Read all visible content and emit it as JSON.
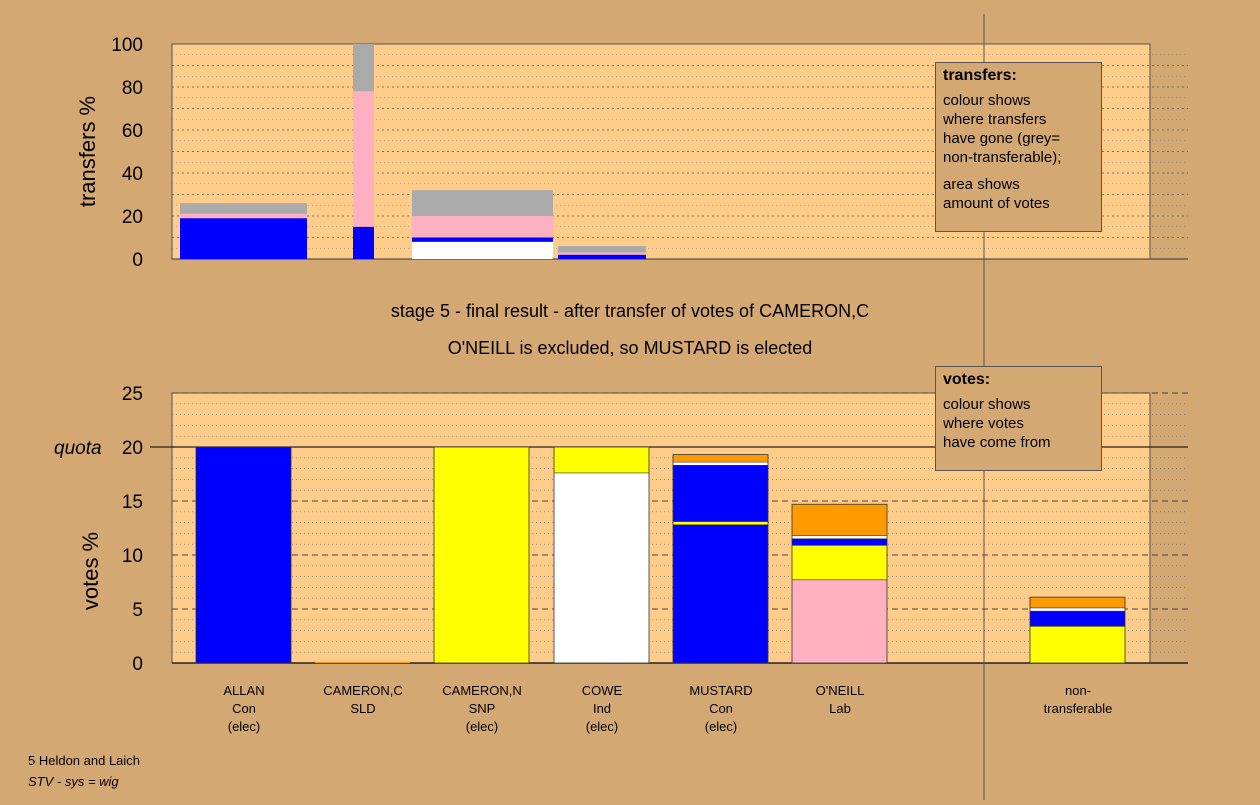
{
  "colors": {
    "background": "#d4a872",
    "plot_bg": "#ffcc8a",
    "Con": "#0000ff",
    "SNP": "#ffff00",
    "Ind": "#ffffff",
    "Lab": "#ffb0c0",
    "SLD": "#ff9900",
    "nontransferable": "#aaaaaa"
  },
  "headings": {
    "line1": "stage 5 - final result - after transfer of votes of CAMERON,C",
    "line2": "O'NEILL is excluded, so MUSTARD is elected"
  },
  "legends": {
    "transfers": {
      "title": "transfers:",
      "lines": [
        "colour shows",
        "where transfers",
        "have gone (grey=",
        "non-transferable);"
      ],
      "lines2": [
        "area shows",
        "amount of votes"
      ]
    },
    "votes": {
      "title": "votes:",
      "lines": [
        "colour shows",
        "where votes",
        "have come from"
      ]
    }
  },
  "candidates": [
    {
      "name": "ALLAN",
      "party": "Con",
      "status": "(elec)"
    },
    {
      "name": "CAMERON,C",
      "party": "SLD",
      "status": ""
    },
    {
      "name": "CAMERON,N",
      "party": "SNP",
      "status": "(elec)"
    },
    {
      "name": "COWE",
      "party": "Ind",
      "status": "(elec)"
    },
    {
      "name": "MUSTARD",
      "party": "Con",
      "status": "(elec)"
    },
    {
      "name": "O'NEILL",
      "party": "Lab",
      "status": ""
    },
    {
      "name": "non-",
      "party": "transferable",
      "status": ""
    }
  ],
  "footer": {
    "line1": "5 Heldon and Laich",
    "line2": "STV - sys = wig"
  },
  "chart_data": [
    {
      "type": "bar",
      "title": "",
      "ylabel": "transfers %",
      "ylim": [
        0,
        100
      ],
      "yticks": [
        0,
        20,
        40,
        60,
        80,
        100
      ],
      "grid": true,
      "note": "variable-width stacked bars; width proportional to amount of votes",
      "bars": [
        {
          "stack": [
            {
              "party": "Con",
              "value": 19
            },
            {
              "party": "Lab",
              "value": 2
            },
            {
              "party": "nontransferable",
              "value": 5
            }
          ]
        },
        {
          "stack": [
            {
              "party": "Con",
              "value": 15
            },
            {
              "party": "Lab",
              "value": 63
            },
            {
              "party": "nontransferable",
              "value": 22
            }
          ]
        },
        {
          "stack": [
            {
              "party": "Ind",
              "value": 8
            },
            {
              "party": "Con",
              "value": 2
            },
            {
              "party": "Lab",
              "value": 10
            },
            {
              "party": "nontransferable",
              "value": 12
            }
          ]
        },
        {
          "stack": [
            {
              "party": "Con",
              "value": 2
            },
            {
              "party": "Lab",
              "value": 1
            },
            {
              "party": "nontransferable",
              "value": 3
            }
          ]
        }
      ]
    },
    {
      "type": "bar",
      "title": "",
      "ylabel": "votes %",
      "ylim": [
        0,
        25
      ],
      "yticks": [
        0,
        5,
        10,
        15,
        20,
        25
      ],
      "quota": {
        "label": "quota",
        "value": 20
      },
      "grid": true,
      "categories": [
        "ALLAN",
        "CAMERON,C",
        "CAMERON,N",
        "COWE",
        "MUSTARD",
        "O'NEILL",
        "non-transferable"
      ],
      "stacks": [
        [
          {
            "party": "Con",
            "value": 20
          }
        ],
        [
          {
            "party": "SLD",
            "value": 0.1
          }
        ],
        [
          {
            "party": "SNP",
            "value": 20
          }
        ],
        [
          {
            "party": "Ind",
            "value": 17.6
          },
          {
            "party": "SNP",
            "value": 2.4
          }
        ],
        [
          {
            "party": "Con",
            "value": 12.8
          },
          {
            "party": "SNP",
            "value": 0.3
          },
          {
            "party": "Con",
            "value": 5.2
          },
          {
            "party": "Ind",
            "value": 0.3
          },
          {
            "party": "SLD",
            "value": 0.7
          }
        ],
        [
          {
            "party": "Lab",
            "value": 7.7
          },
          {
            "party": "SNP",
            "value": 3.2
          },
          {
            "party": "Con",
            "value": 0.6
          },
          {
            "party": "Ind",
            "value": 0.3
          },
          {
            "party": "SLD",
            "value": 2.9
          }
        ],
        [
          {
            "party": "SNP",
            "value": 3.4
          },
          {
            "party": "Con",
            "value": 1.4
          },
          {
            "party": "Ind",
            "value": 0.3
          },
          {
            "party": "SLD",
            "value": 1.0
          }
        ]
      ]
    }
  ]
}
